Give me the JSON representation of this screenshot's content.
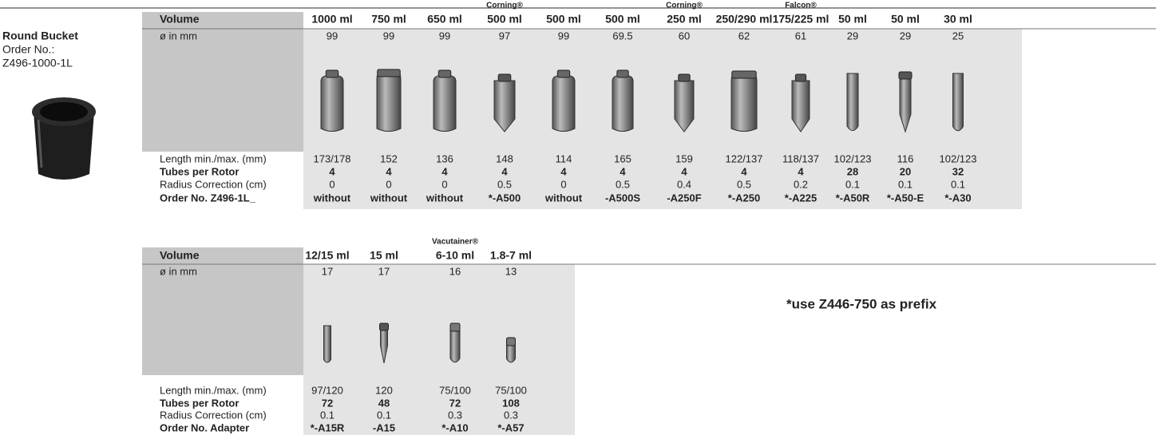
{
  "product": {
    "name": "Round Bucket",
    "order_label": "Order No.:",
    "order_no": "Z496-1000-1L"
  },
  "table1": {
    "brands": [
      null,
      null,
      null,
      "Corning®",
      null,
      null,
      "Corning®",
      null,
      "Falcon®",
      null,
      null,
      null
    ],
    "header": [
      "Volume",
      "1000 ml",
      "750 ml",
      "650 ml",
      "500 ml",
      "500 ml",
      "500 ml",
      "250 ml",
      "250/290 ml",
      "175/225 ml",
      "50 ml",
      "50 ml",
      "30 ml"
    ],
    "rows": [
      [
        "ø in mm",
        "99",
        "99",
        "99",
        "97",
        "99",
        "69.5",
        "60",
        "62",
        "61",
        "29",
        "29",
        "25"
      ],
      [
        "Length min./max. (mm)",
        "173/178",
        "152",
        "136",
        "148",
        "114",
        "165",
        "159",
        "122/137",
        "118/137",
        "102/123",
        "116",
        "102/123"
      ],
      [
        "Tubes per Rotor",
        "4",
        "4",
        "4",
        "4",
        "4",
        "4",
        "4",
        "4",
        "4",
        "28",
        "20",
        "32"
      ],
      [
        "Radius Correction (cm)",
        "0",
        "0",
        "0",
        "0.5",
        "0",
        "0.5",
        "0.4",
        "0.5",
        "0.2",
        "0.1",
        "0.1",
        "0.1"
      ],
      [
        "Order No. Z496-1L_",
        "without",
        "without",
        "without",
        "*-A500",
        "without",
        "-A500S",
        "-A250F",
        "*-A250",
        "*-A225",
        "*-A50R",
        "*-A50-E",
        "*-A30"
      ]
    ]
  },
  "table2": {
    "brands": [
      null,
      null,
      "Vacutainer®",
      null
    ],
    "header": [
      "Volume",
      "12/15 ml",
      "15 ml",
      "6-10 ml",
      "1.8-7 ml"
    ],
    "rows": [
      [
        "ø in mm",
        "17",
        "17",
        "16",
        "13"
      ],
      [
        "Length min./max. (mm)",
        "97/120",
        "120",
        "75/100",
        "75/100"
      ],
      [
        "Tubes per Rotor",
        "72",
        "48",
        "72",
        "108"
      ],
      [
        "Radius Correction (cm)",
        "0.1",
        "0.1",
        "0.3",
        "0.3"
      ],
      [
        "Order No. Adapter",
        "*-A15R",
        "-A15",
        "*-A10",
        "*-A57"
      ]
    ]
  },
  "note": "*use Z446-750 as prefix"
}
